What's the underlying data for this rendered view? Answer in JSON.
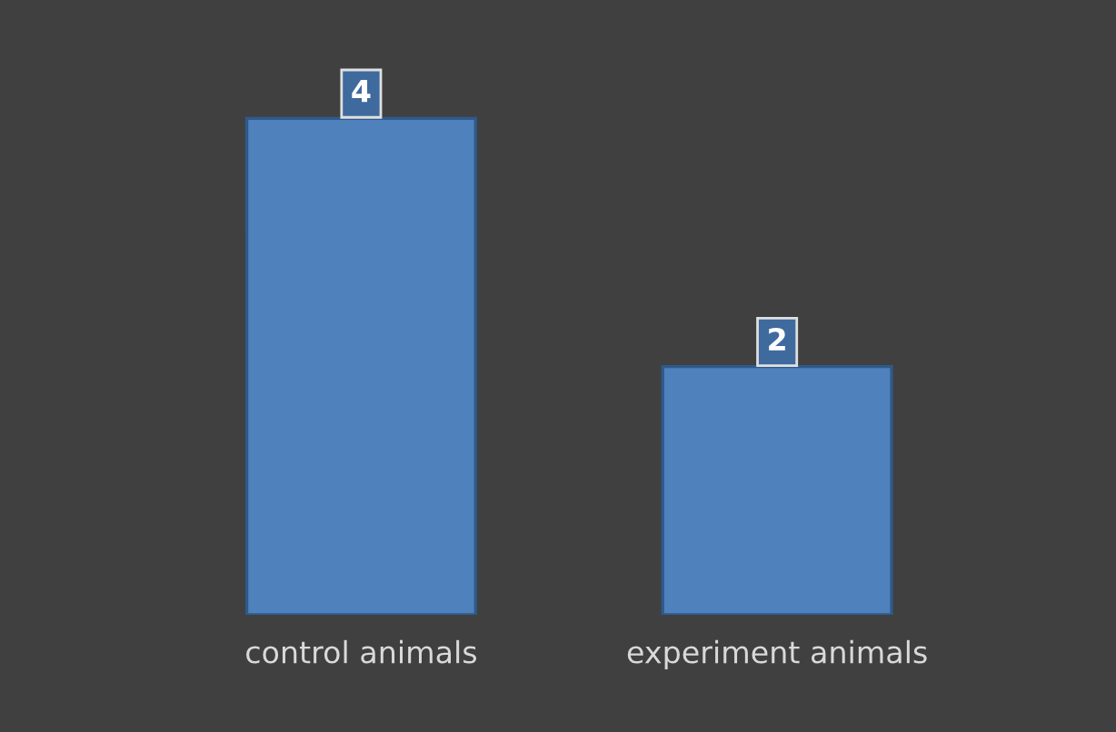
{
  "chart_data": {
    "type": "bar",
    "categories": [
      "control animals",
      "experiment animals"
    ],
    "values": [
      4,
      2
    ],
    "color": "#4f81bd",
    "data_labels": true,
    "grid": false,
    "legend": false
  }
}
